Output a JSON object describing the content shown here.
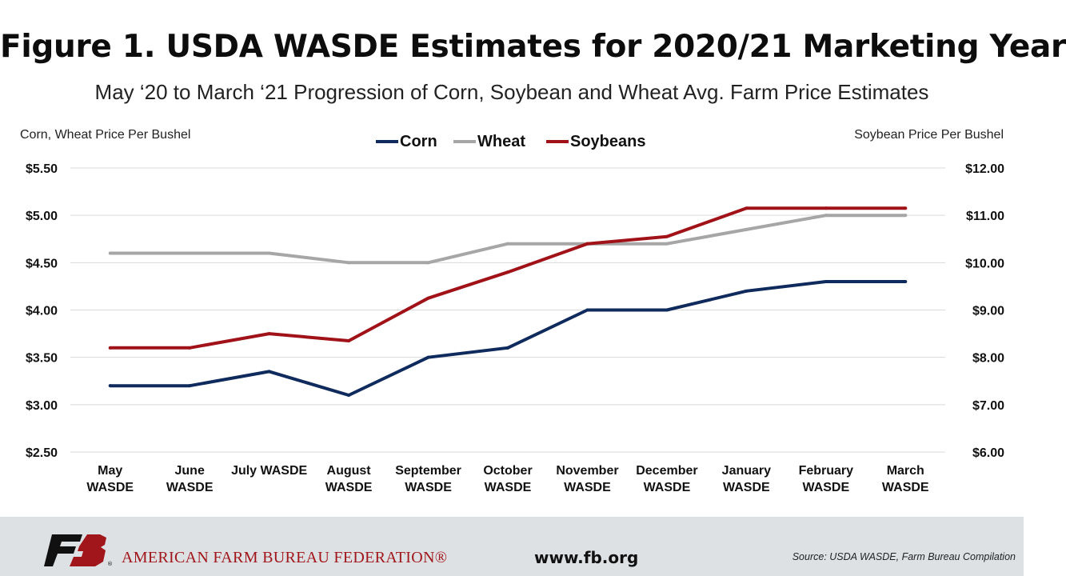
{
  "header": {
    "title": "Figure 1. USDA WASDE Estimates for 2020/21 Marketing Year",
    "subtitle": "May ‘20 to March ‘21 Progression of Corn, Soybean and Wheat Avg. Farm Price Estimates"
  },
  "axes": {
    "left_title": "Corn, Wheat Price Per Bushel",
    "right_title": "Soybean Price Per Bushel"
  },
  "chart_data": {
    "type": "line",
    "categories": [
      [
        "May",
        "WASDE"
      ],
      [
        "June",
        "WASDE"
      ],
      [
        "July WASDE"
      ],
      [
        "August",
        "WASDE"
      ],
      [
        "September",
        "WASDE"
      ],
      [
        "October",
        "WASDE"
      ],
      [
        "November",
        "WASDE"
      ],
      [
        "December",
        "WASDE"
      ],
      [
        "January",
        "WASDE"
      ],
      [
        "February",
        "WASDE"
      ],
      [
        "March",
        "WASDE"
      ]
    ],
    "series": [
      {
        "name": "Corn",
        "axis": "left",
        "color": "#0f2a5c",
        "values": [
          3.2,
          3.2,
          3.35,
          3.1,
          3.5,
          3.6,
          4.0,
          4.0,
          4.2,
          4.3,
          4.3
        ]
      },
      {
        "name": "Wheat",
        "axis": "left",
        "color": "#a6a6a6",
        "values": [
          4.6,
          4.6,
          4.6,
          4.5,
          4.5,
          4.7,
          4.7,
          4.7,
          4.85,
          5.0,
          5.0
        ]
      },
      {
        "name": "Soybeans",
        "axis": "right",
        "color": "#a01218",
        "values": [
          8.2,
          8.2,
          8.5,
          8.35,
          9.25,
          9.8,
          10.4,
          10.55,
          11.15,
          11.15,
          11.15
        ]
      }
    ],
    "left_axis": {
      "ylim": [
        2.5,
        5.5
      ],
      "ticks": [
        "$2.50",
        "$3.00",
        "$3.50",
        "$4.00",
        "$4.50",
        "$5.00",
        "$5.50"
      ]
    },
    "right_axis": {
      "ylim": [
        6.0,
        12.0
      ],
      "ticks": [
        "$6.00",
        "$7.00",
        "$8.00",
        "$9.00",
        "$10.00",
        "$11.00",
        "$12.00"
      ]
    },
    "grid": true,
    "legend_position": "top-center"
  },
  "footer": {
    "org_name": "AMERICAN FARM BUREAU FEDERATION®",
    "logo_text": "FB",
    "website": "www.fb.org",
    "source": "Source: USDA WASDE, Farm Bureau Compilation"
  }
}
